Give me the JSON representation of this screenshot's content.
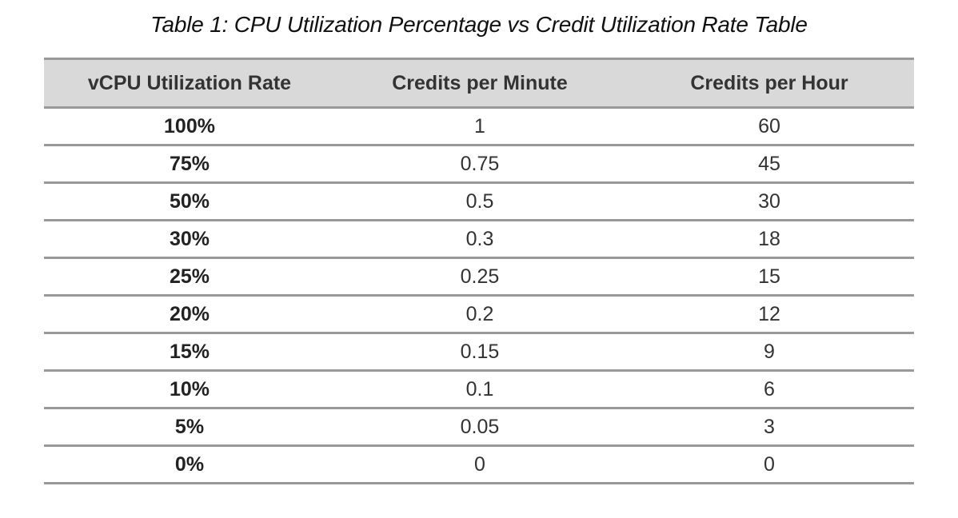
{
  "caption": "Table 1: CPU Utilization Percentage vs Credit Utilization Rate Table",
  "columns": [
    "vCPU Utilization Rate",
    "Credits per Minute",
    "Credits per Hour"
  ],
  "rows": [
    [
      "100%",
      "1",
      "60"
    ],
    [
      "75%",
      "0.75",
      "45"
    ],
    [
      "50%",
      "0.5",
      "30"
    ],
    [
      "30%",
      "0.3",
      "18"
    ],
    [
      "25%",
      "0.25",
      "15"
    ],
    [
      "20%",
      "0.2",
      "12"
    ],
    [
      "15%",
      "0.15",
      "9"
    ],
    [
      "10%",
      "0.1",
      "6"
    ],
    [
      "5%",
      "0.05",
      "3"
    ],
    [
      "0%",
      "0",
      "0"
    ]
  ],
  "chart_data": {
    "type": "table",
    "title": "Table 1: CPU Utilization Percentage vs Credit Utilization Rate Table",
    "columns": [
      "vCPU Utilization Rate",
      "Credits per Minute",
      "Credits per Hour"
    ],
    "rows": [
      [
        "100%",
        1,
        60
      ],
      [
        "75%",
        0.75,
        45
      ],
      [
        "50%",
        0.5,
        30
      ],
      [
        "30%",
        0.3,
        18
      ],
      [
        "25%",
        0.25,
        15
      ],
      [
        "20%",
        0.2,
        12
      ],
      [
        "15%",
        0.15,
        9
      ],
      [
        "10%",
        0.1,
        6
      ],
      [
        "5%",
        0.05,
        3
      ],
      [
        "0%",
        0,
        0
      ]
    ]
  }
}
